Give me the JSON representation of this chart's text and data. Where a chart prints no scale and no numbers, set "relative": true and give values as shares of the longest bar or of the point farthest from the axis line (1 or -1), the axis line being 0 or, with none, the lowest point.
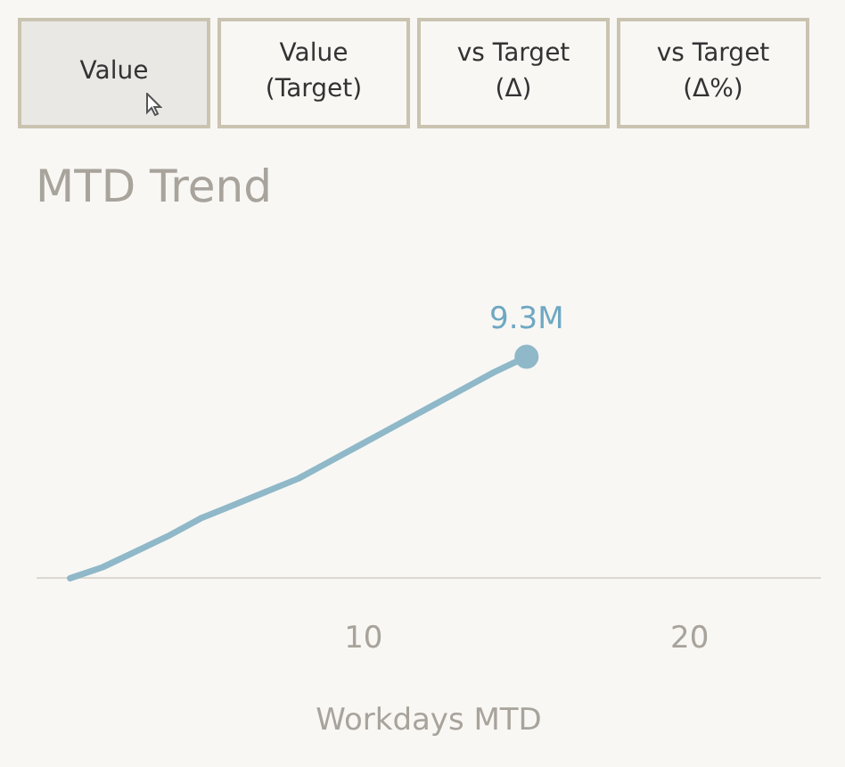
{
  "chart_data": {
    "type": "line",
    "title": "MTD Trend",
    "xlabel": "Workdays MTD",
    "annotations": [
      "Value",
      "Value\n(Target)",
      "vs Target\n(Δ)",
      "vs Target\n(Δ%)",
      {
        "text": "9.3M",
        "x": 15,
        "y": 1
      }
    ],
    "relative": true,
    "x": [
      1,
      2,
      3,
      4,
      5,
      6,
      7,
      8,
      9,
      10,
      11,
      12,
      13,
      14,
      15
    ],
    "series": [
      {
        "color": "#8fb8c9",
        "values": [
          0,
          0.05,
          0.12,
          0.19,
          0.27,
          0.33,
          0.39,
          0.45,
          0.53,
          0.61,
          0.69,
          0.77,
          0.85,
          0.93,
          1
        ]
      }
    ],
    "xlim": [
      0,
      24
    ],
    "xticks": [
      10,
      20
    ],
    "grid": false,
    "legend": false,
    "line_style": "solid"
  }
}
